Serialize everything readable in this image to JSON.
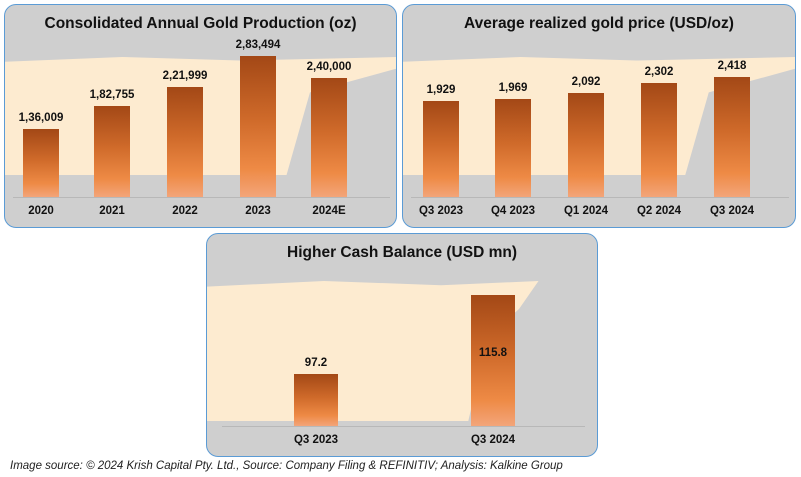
{
  "chart_data": [
    {
      "type": "bar",
      "title": "Consolidated Annual Gold Production (oz)",
      "categories": [
        "2020",
        "2021",
        "2022",
        "2023",
        "2024E"
      ],
      "values": [
        136009,
        182755,
        221999,
        283494,
        240000
      ],
      "value_labels": [
        "1,36,009",
        "1,82,755",
        "2,21,999",
        "2,83,494",
        "2,40,000"
      ],
      "xlabel": "",
      "ylabel": "",
      "ylim": [
        0,
        300000
      ]
    },
    {
      "type": "bar",
      "title": "Average realized gold price (USD/oz)",
      "categories": [
        "Q3 2023",
        "Q4 2023",
        "Q1 2024",
        "Q2 2024",
        "Q3 2024"
      ],
      "values": [
        1929,
        1969,
        2092,
        2302,
        2418
      ],
      "value_labels": [
        "1,929",
        "1,969",
        "2,092",
        "2,302",
        "2,418"
      ],
      "xlabel": "",
      "ylabel": "",
      "ylim": [
        0,
        3000
      ]
    },
    {
      "type": "bar",
      "title": "Higher Cash Balance (USD mn)",
      "categories": [
        "Q3 2023",
        "Q3 2024"
      ],
      "values": [
        97.2,
        115.8
      ],
      "value_labels": [
        "97.2",
        "115.8"
      ],
      "xlabel": "",
      "ylabel": "",
      "ylim": [
        85,
        120
      ]
    }
  ],
  "footer": "Image source: © 2024 Krish Capital Pty. Ltd., Source: Company Filing & REFINITIV; Analysis: Kalkine Group",
  "colors": {
    "border": "#5b9bd5",
    "bar_top": "#a34816",
    "bar_bottom": "#f3a57a",
    "panel_bg": "#cfcfcf",
    "band": "#fdebd0"
  }
}
